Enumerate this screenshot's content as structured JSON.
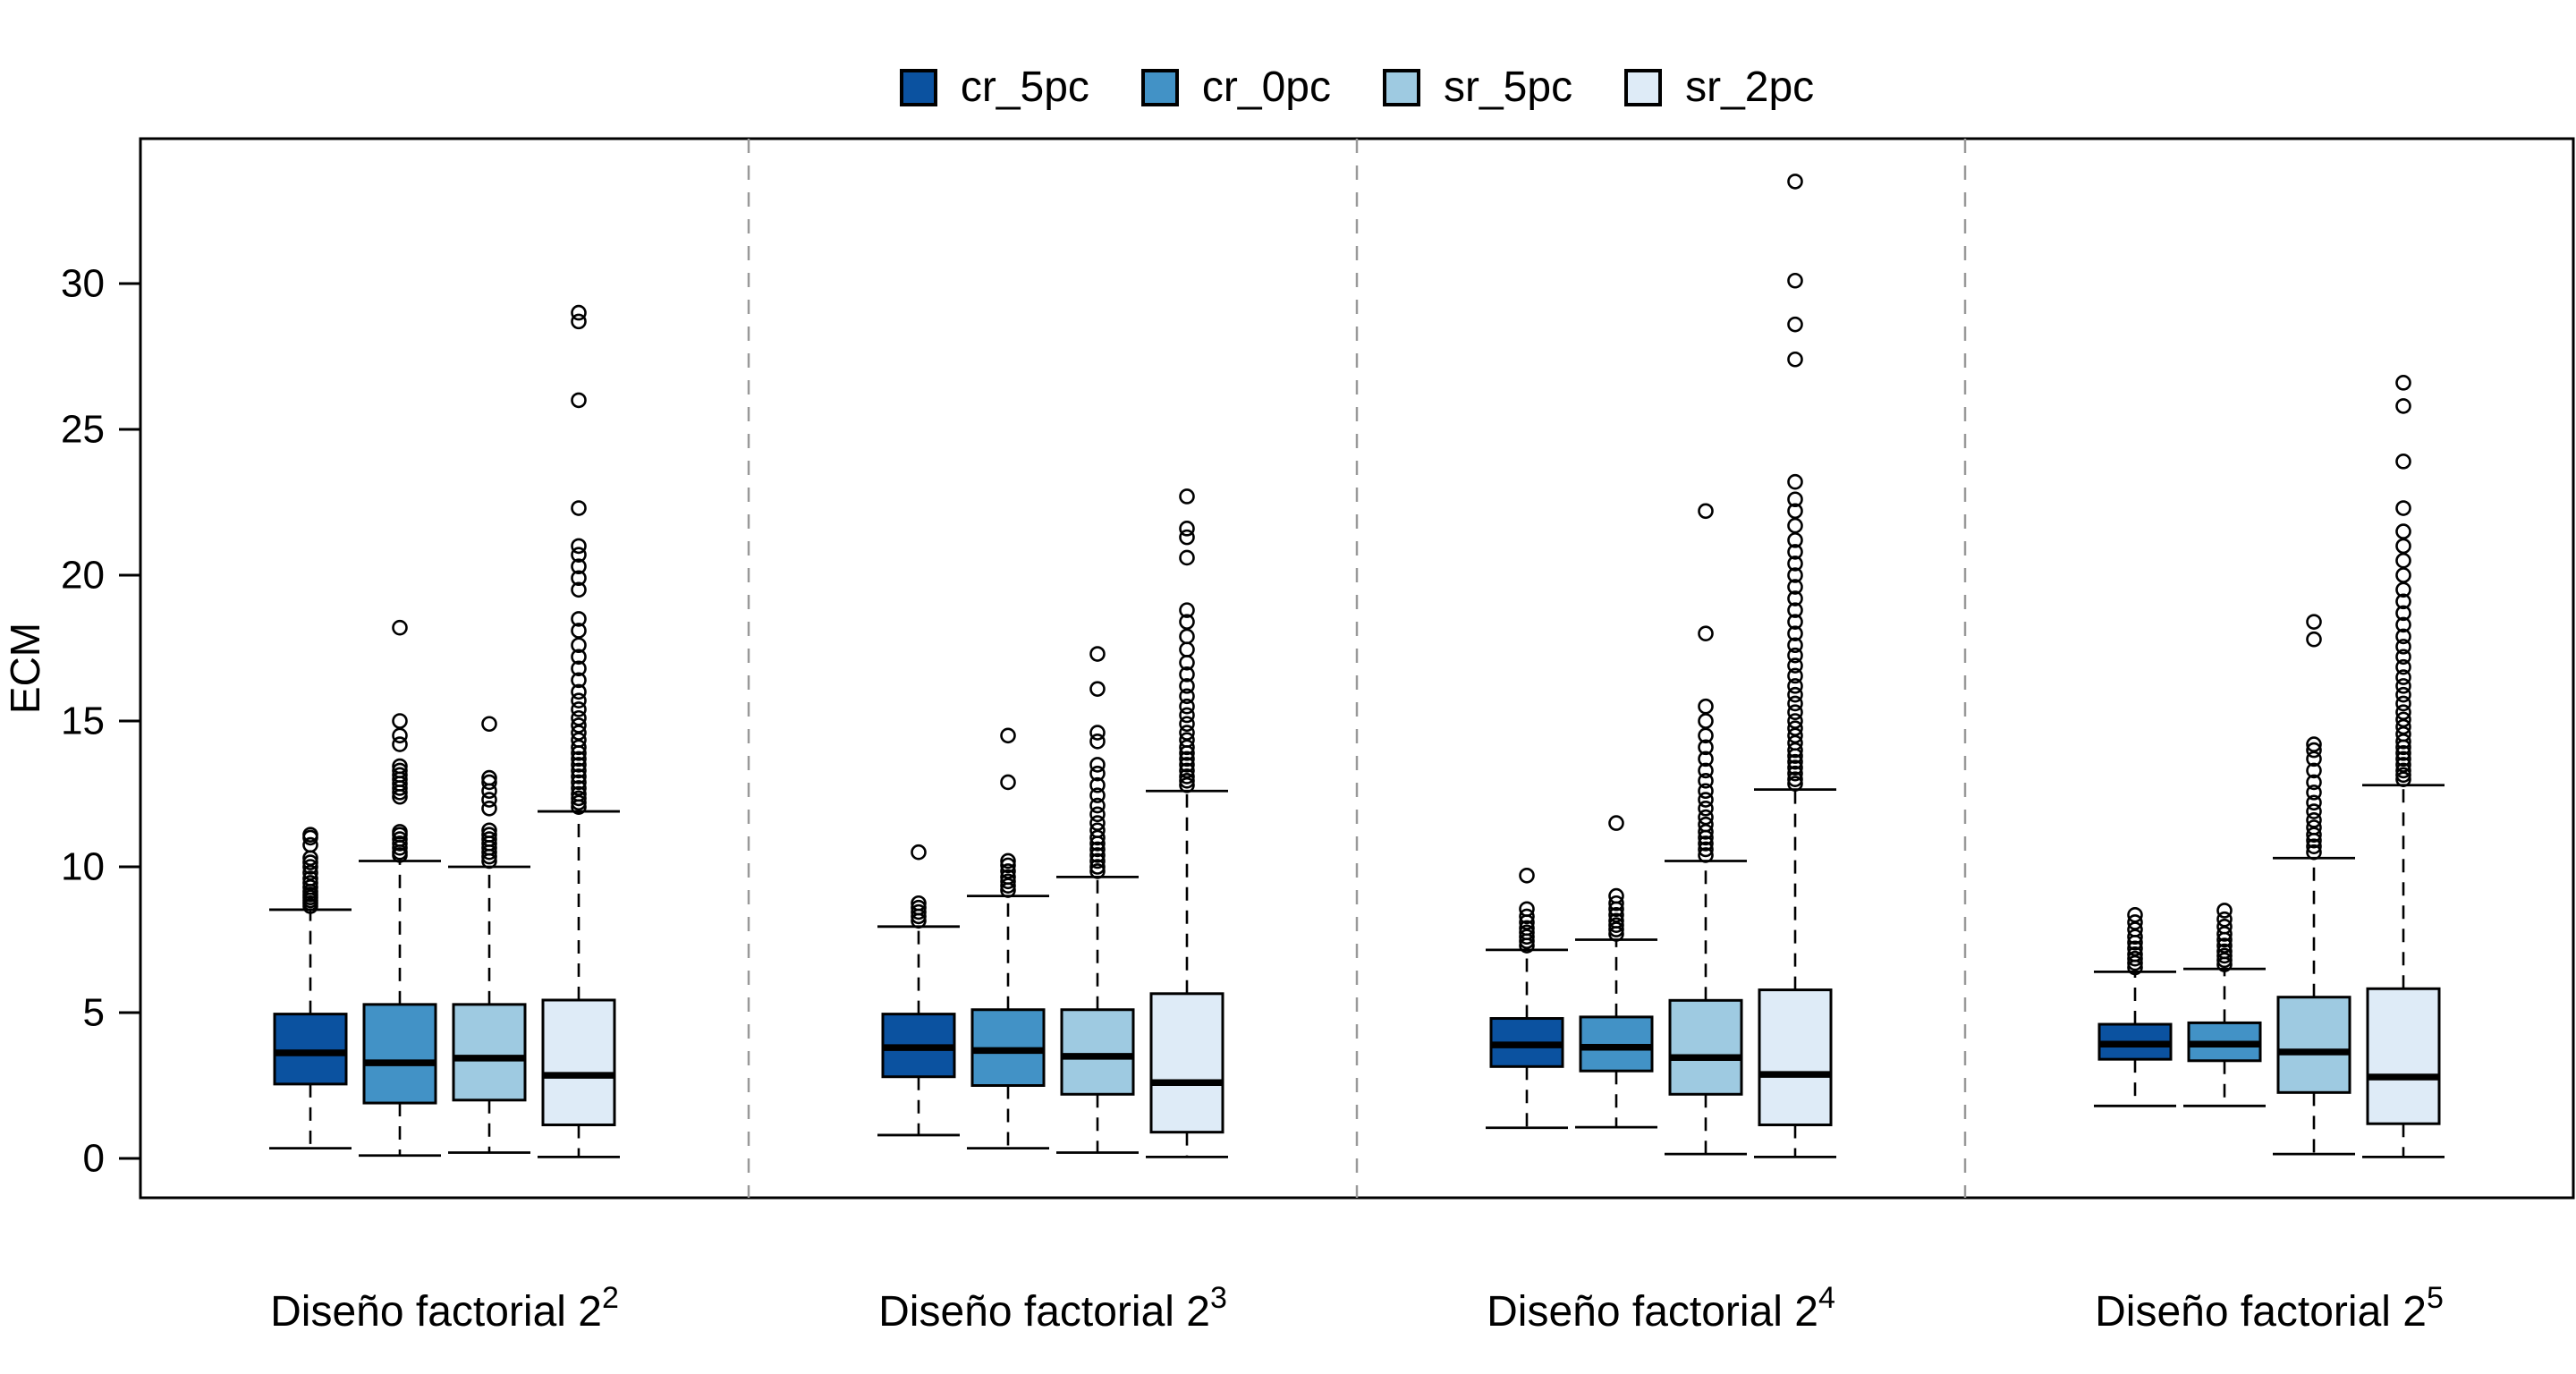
{
  "legend": {
    "position": "top",
    "items": [
      {
        "label": "cr_5pc",
        "color": "#0B52A0"
      },
      {
        "label": "cr_0pc",
        "color": "#4292C6"
      },
      {
        "label": "sr_5pc",
        "color": "#9ECAE1"
      },
      {
        "label": "sr_2pc",
        "color": "#DEEBF7"
      }
    ]
  },
  "y_axis": {
    "label": "ECM",
    "ticks": [
      0,
      5,
      10,
      15,
      20,
      25,
      30
    ]
  },
  "chart_data": {
    "type": "boxplot",
    "title": "",
    "xlabel": "",
    "ylabel": "ECM",
    "ylim": [
      0,
      35
    ],
    "grid": false,
    "legend_position": "top",
    "group_separator_style": "dashed-gray",
    "series": [
      {
        "name": "cr_5pc",
        "color": "#0B52A0"
      },
      {
        "name": "cr_0pc",
        "color": "#4292C6"
      },
      {
        "name": "sr_5pc",
        "color": "#9ECAE1"
      },
      {
        "name": "sr_2pc",
        "color": "#DEEBF7"
      }
    ],
    "groups": [
      {
        "label": "Diseño factorial 2",
        "exponent": "2",
        "boxes": [
          {
            "low": 0.35,
            "q1": 2.55,
            "median": 3.62,
            "q3": 4.95,
            "high": 8.53,
            "outliers": [
              8.65,
              8.75,
              8.85,
              8.95,
              9.05,
              9.15,
              9.3,
              9.45,
              9.6,
              9.8,
              10.0,
              10.15,
              10.3,
              10.75,
              11.0,
              11.1
            ]
          },
          {
            "low": 0.1,
            "q1": 1.9,
            "median": 3.28,
            "q3": 5.28,
            "high": 10.2,
            "outliers": [
              10.4,
              10.5,
              10.65,
              10.8,
              10.95,
              11.1,
              11.2,
              12.4,
              12.55,
              12.7,
              12.85,
              13.0,
              13.15,
              13.3,
              13.45,
              14.2,
              14.5,
              15.0,
              18.2
            ]
          },
          {
            "low": 0.2,
            "q1": 2.0,
            "median": 3.44,
            "q3": 5.28,
            "high": 10.0,
            "outliers": [
              10.2,
              10.35,
              10.5,
              10.65,
              10.8,
              10.95,
              11.1,
              11.25,
              12.0,
              12.3,
              12.6,
              12.9,
              13.05,
              14.9
            ]
          },
          {
            "low": 0.05,
            "q1": 1.15,
            "median": 2.85,
            "q3": 5.43,
            "high": 11.9,
            "outliers": [
              12.05,
              12.2,
              12.35,
              12.5,
              12.7,
              12.9,
              13.1,
              13.3,
              13.5,
              13.7,
              13.9,
              14.1,
              14.35,
              14.6,
              14.85,
              15.1,
              15.4,
              15.7,
              16.0,
              16.4,
              16.8,
              17.2,
              17.6,
              18.1,
              18.5,
              19.5,
              19.9,
              20.3,
              20.7,
              21.0,
              22.3,
              26.0,
              28.7,
              29.0
            ]
          }
        ]
      },
      {
        "label": "Diseño factorial 2",
        "exponent": "3",
        "boxes": [
          {
            "low": 0.8,
            "q1": 2.8,
            "median": 3.8,
            "q3": 4.95,
            "high": 7.95,
            "outliers": [
              8.15,
              8.3,
              8.45,
              8.6,
              8.75,
              10.5
            ]
          },
          {
            "low": 0.35,
            "q1": 2.5,
            "median": 3.7,
            "q3": 5.1,
            "high": 9.0,
            "outliers": [
              9.2,
              9.35,
              9.5,
              9.65,
              9.85,
              10.05,
              10.2,
              12.9,
              14.5
            ]
          },
          {
            "low": 0.2,
            "q1": 2.2,
            "median": 3.5,
            "q3": 5.1,
            "high": 9.65,
            "outliers": [
              9.85,
              10.0,
              10.2,
              10.4,
              10.6,
              10.8,
              11.0,
              11.25,
              11.5,
              11.8,
              12.1,
              12.45,
              12.8,
              13.2,
              13.5,
              14.3,
              14.6,
              16.1,
              17.3
            ]
          },
          {
            "low": 0.05,
            "q1": 0.9,
            "median": 2.6,
            "q3": 5.65,
            "high": 12.6,
            "outliers": [
              12.8,
              12.95,
              13.1,
              13.3,
              13.5,
              13.7,
              13.9,
              14.1,
              14.35,
              14.6,
              14.9,
              15.2,
              15.5,
              15.85,
              16.2,
              16.6,
              17.0,
              17.45,
              17.9,
              18.4,
              18.8,
              20.6,
              21.3,
              21.6,
              22.7
            ]
          }
        ]
      },
      {
        "label": "Diseño factorial 2",
        "exponent": "4",
        "boxes": [
          {
            "low": 1.05,
            "q1": 3.15,
            "median": 3.89,
            "q3": 4.8,
            "high": 7.15,
            "outliers": [
              7.3,
              7.45,
              7.6,
              7.75,
              7.9,
              8.1,
              8.3,
              8.55,
              9.7
            ]
          },
          {
            "low": 1.07,
            "q1": 3.0,
            "median": 3.81,
            "q3": 4.85,
            "high": 7.5,
            "outliers": [
              7.7,
              7.85,
              8.0,
              8.15,
              8.35,
              8.55,
              8.75,
              9.0,
              11.5
            ]
          },
          {
            "low": 0.15,
            "q1": 2.2,
            "median": 3.46,
            "q3": 5.42,
            "high": 10.2,
            "outliers": [
              10.4,
              10.6,
              10.8,
              11.0,
              11.2,
              11.45,
              11.7,
              12.0,
              12.3,
              12.6,
              12.95,
              13.3,
              13.7,
              14.1,
              14.5,
              15.0,
              15.5,
              18.0,
              22.2
            ]
          },
          {
            "low": 0.05,
            "q1": 1.15,
            "median": 2.88,
            "q3": 5.78,
            "high": 12.65,
            "outliers": [
              12.85,
              13.0,
              13.2,
              13.4,
              13.6,
              13.8,
              14.0,
              14.25,
              14.5,
              14.75,
              15.0,
              15.3,
              15.6,
              15.9,
              16.2,
              16.55,
              16.9,
              17.25,
              17.6,
              18.0,
              18.4,
              18.8,
              19.2,
              19.6,
              20.0,
              20.4,
              20.8,
              21.2,
              21.7,
              22.2,
              22.6,
              23.2,
              27.4,
              28.6,
              30.1,
              33.5
            ]
          }
        ]
      },
      {
        "label": "Diseño factorial 2",
        "exponent": "5",
        "boxes": [
          {
            "low": 1.8,
            "q1": 3.4,
            "median": 3.92,
            "q3": 4.6,
            "high": 6.4,
            "outliers": [
              6.55,
              6.7,
              6.85,
              7.0,
              7.2,
              7.4,
              7.6,
              7.85,
              8.1,
              8.35
            ]
          },
          {
            "low": 1.8,
            "q1": 3.35,
            "median": 3.92,
            "q3": 4.65,
            "high": 6.5,
            "outliers": [
              6.65,
              6.8,
              6.95,
              7.1,
              7.3,
              7.5,
              7.7,
              7.95,
              8.2,
              8.5
            ]
          },
          {
            "low": 0.15,
            "q1": 2.26,
            "median": 3.65,
            "q3": 5.53,
            "high": 10.3,
            "outliers": [
              10.5,
              10.7,
              10.9,
              11.1,
              11.35,
              11.6,
              11.9,
              12.2,
              12.55,
              12.9,
              13.3,
              13.7,
              14.0,
              14.2,
              17.8,
              18.4
            ]
          },
          {
            "low": 0.05,
            "q1": 1.19,
            "median": 2.79,
            "q3": 5.82,
            "high": 12.8,
            "outliers": [
              13.0,
              13.15,
              13.3,
              13.5,
              13.7,
              13.9,
              14.1,
              14.3,
              14.55,
              14.8,
              15.05,
              15.3,
              15.6,
              15.9,
              16.2,
              16.5,
              16.85,
              17.2,
              17.55,
              17.9,
              18.3,
              18.7,
              19.1,
              19.5,
              20.0,
              20.5,
              21.0,
              21.5,
              22.3,
              23.9,
              25.8,
              26.6
            ]
          }
        ]
      }
    ]
  }
}
